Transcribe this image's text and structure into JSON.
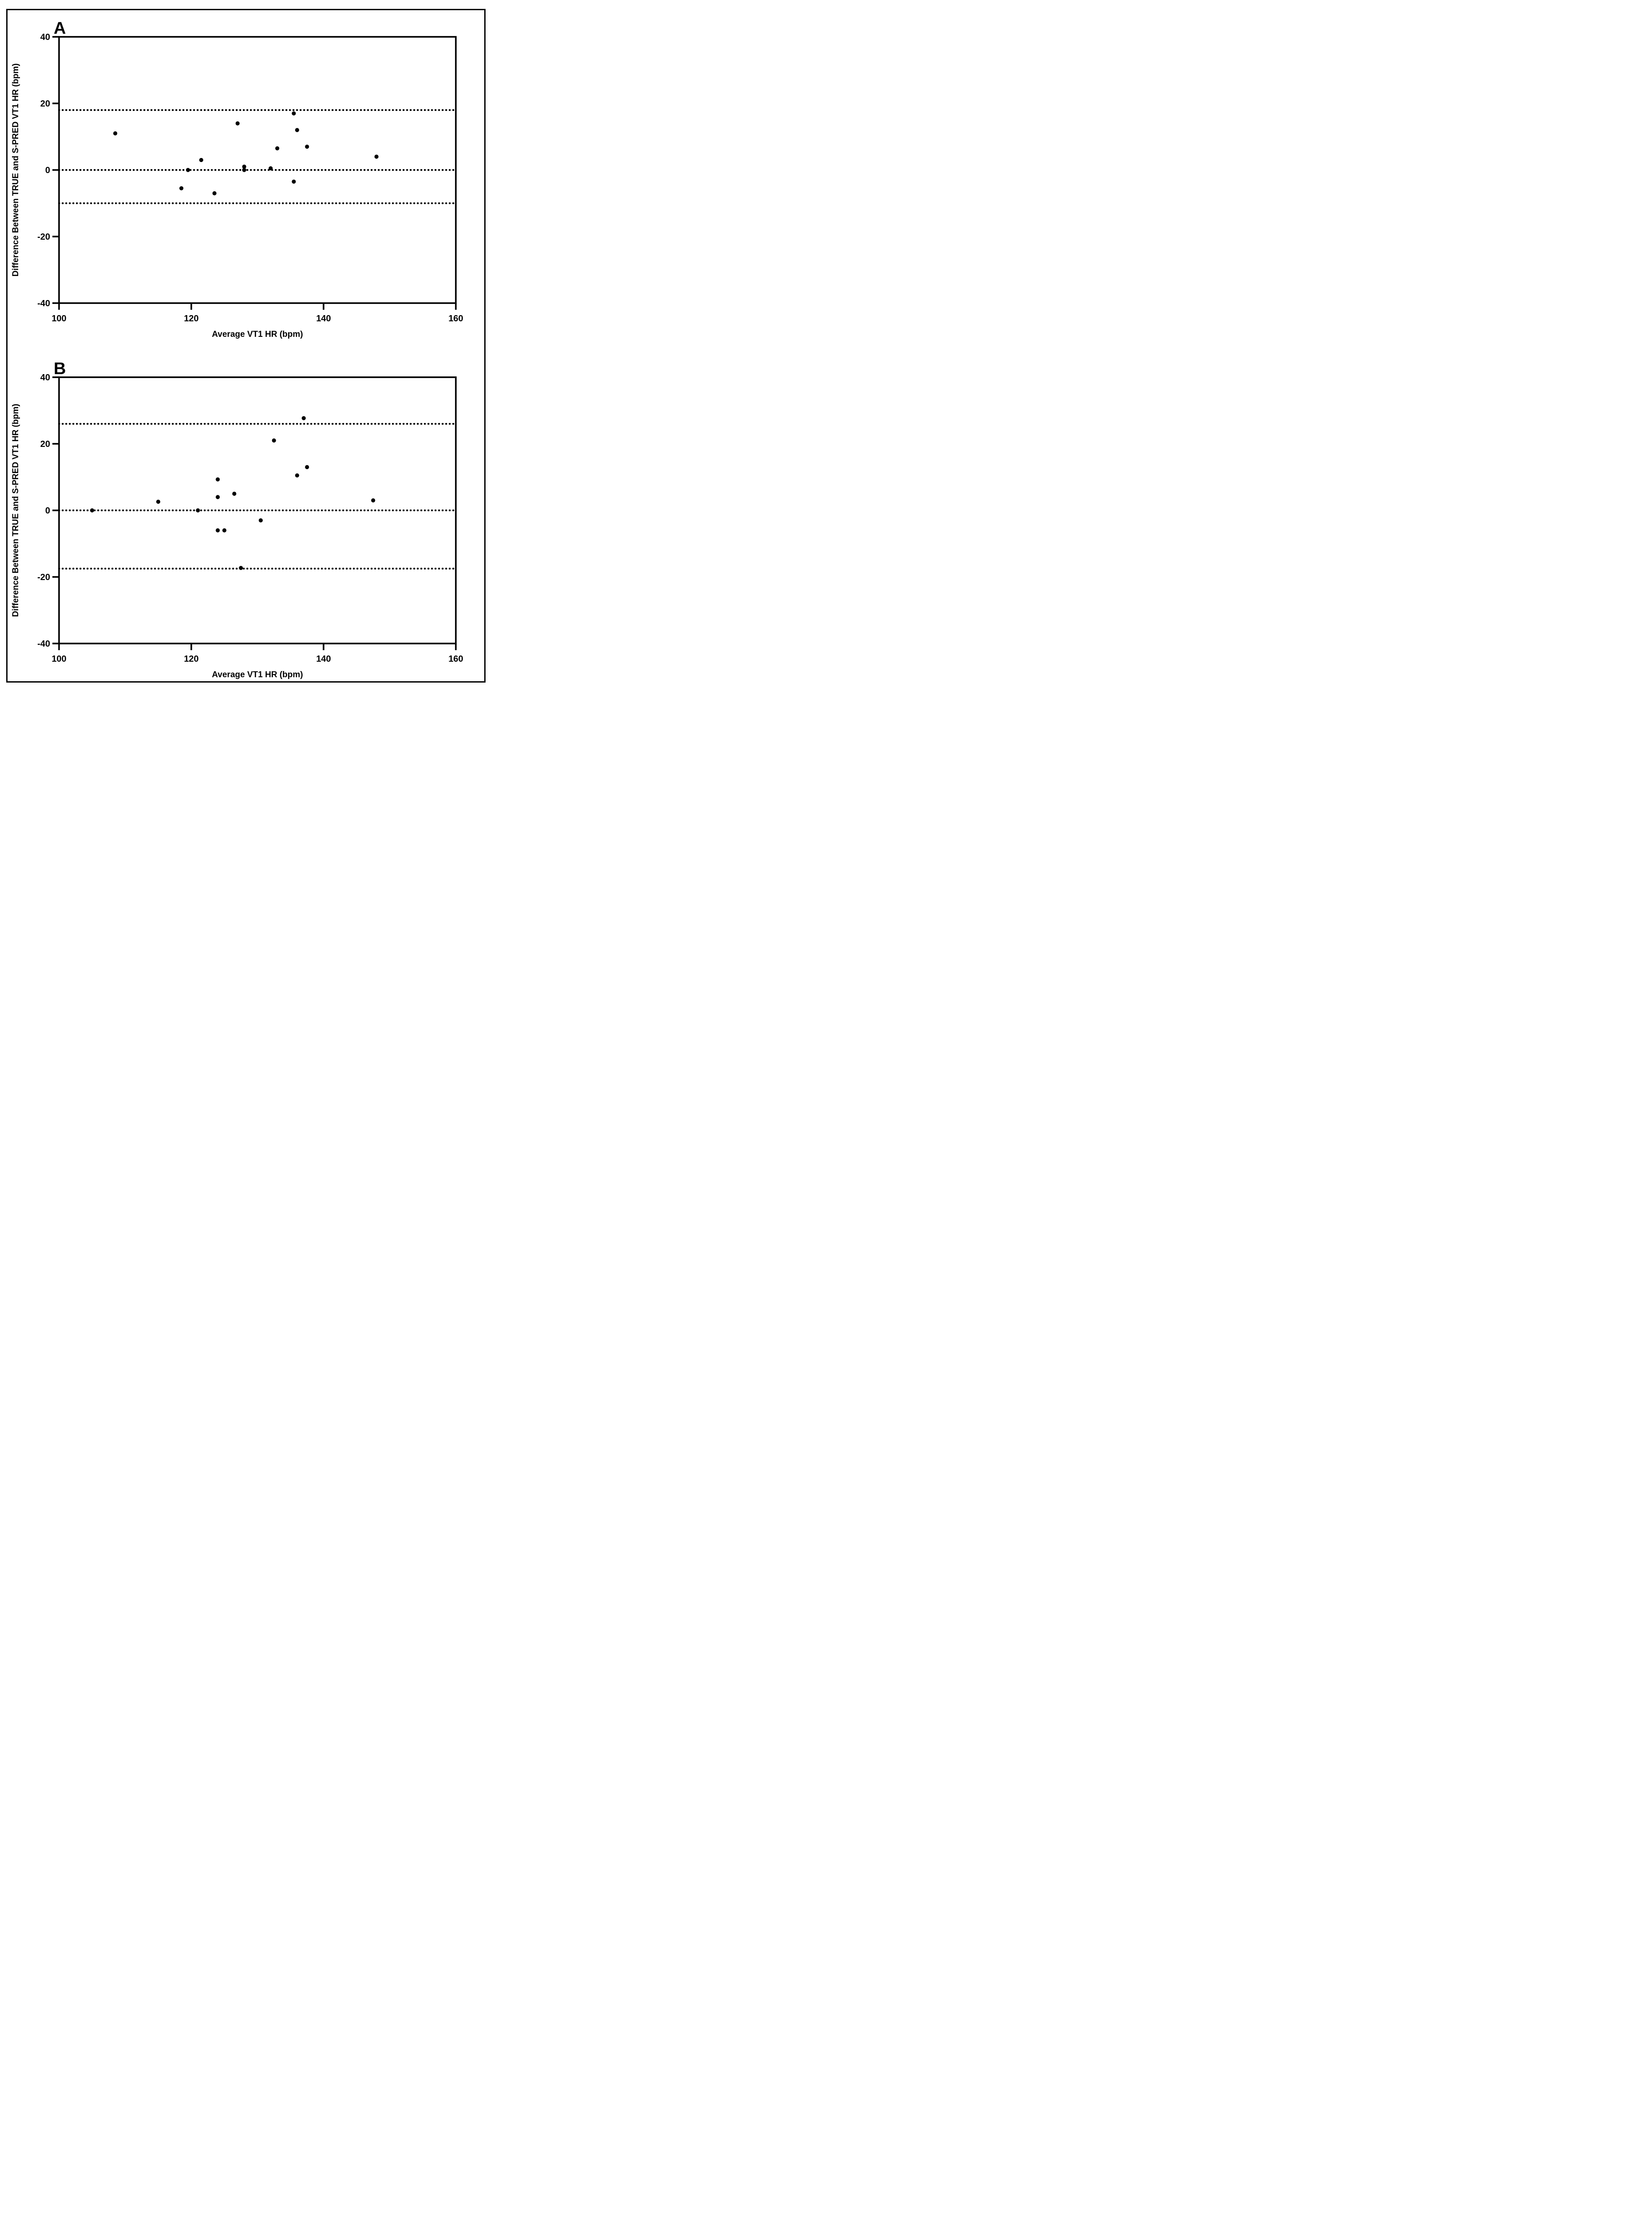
{
  "figure": {
    "background_color": "#ffffff",
    "ink_color": "#000000",
    "border": "thin solid black rectangle around both panels"
  },
  "chart_data": [
    {
      "type": "scatter",
      "panel_label": "A",
      "xlabel": "Average VT1 HR (bpm)",
      "ylabel": "Difference Between TRUE and S-PRED VT1 HR (bpm)",
      "xlim": [
        100,
        160
      ],
      "ylim": [
        -40,
        40
      ],
      "x_ticks": [
        100,
        120,
        140,
        160
      ],
      "y_ticks": [
        40,
        20,
        0,
        -20,
        -40
      ],
      "grid": false,
      "legend": "none",
      "reference_lines": {
        "style": "dotted",
        "mean": 0,
        "upper_loa": 18,
        "lower_loa": -10
      },
      "points": [
        [
          108.5,
          11
        ],
        [
          118.5,
          -5.5
        ],
        [
          119.5,
          0
        ],
        [
          121.5,
          3
        ],
        [
          123.5,
          -7
        ],
        [
          127,
          14
        ],
        [
          128,
          1
        ],
        [
          128,
          0
        ],
        [
          132,
          0.5
        ],
        [
          133,
          6.5
        ],
        [
          135.5,
          17
        ],
        [
          135.5,
          -3.5
        ],
        [
          136,
          12
        ],
        [
          137.5,
          7
        ],
        [
          148,
          4
        ]
      ]
    },
    {
      "type": "scatter",
      "panel_label": "B",
      "xlabel": "Average VT1 HR (bpm)",
      "ylabel": "Difference Between TRUE and S-PRED VT1 HR (bpm)",
      "xlim": [
        100,
        160
      ],
      "ylim": [
        -40,
        40
      ],
      "x_ticks": [
        100,
        120,
        140,
        160
      ],
      "y_ticks": [
        40,
        20,
        0,
        -20,
        -40
      ],
      "grid": false,
      "legend": "none",
      "reference_lines": {
        "style": "dotted",
        "mean": 0,
        "upper_loa": 26,
        "lower_loa": -17.5
      },
      "points": [
        [
          105,
          0
        ],
        [
          115,
          2.6
        ],
        [
          121,
          0
        ],
        [
          124,
          9.3
        ],
        [
          124,
          4
        ],
        [
          124,
          -6
        ],
        [
          125,
          -6
        ],
        [
          126.5,
          5
        ],
        [
          127.5,
          -17.3
        ],
        [
          130.5,
          -3
        ],
        [
          132.5,
          21
        ],
        [
          136,
          10.5
        ],
        [
          137,
          27.7
        ],
        [
          137.5,
          13
        ],
        [
          147.5,
          3
        ]
      ]
    }
  ]
}
